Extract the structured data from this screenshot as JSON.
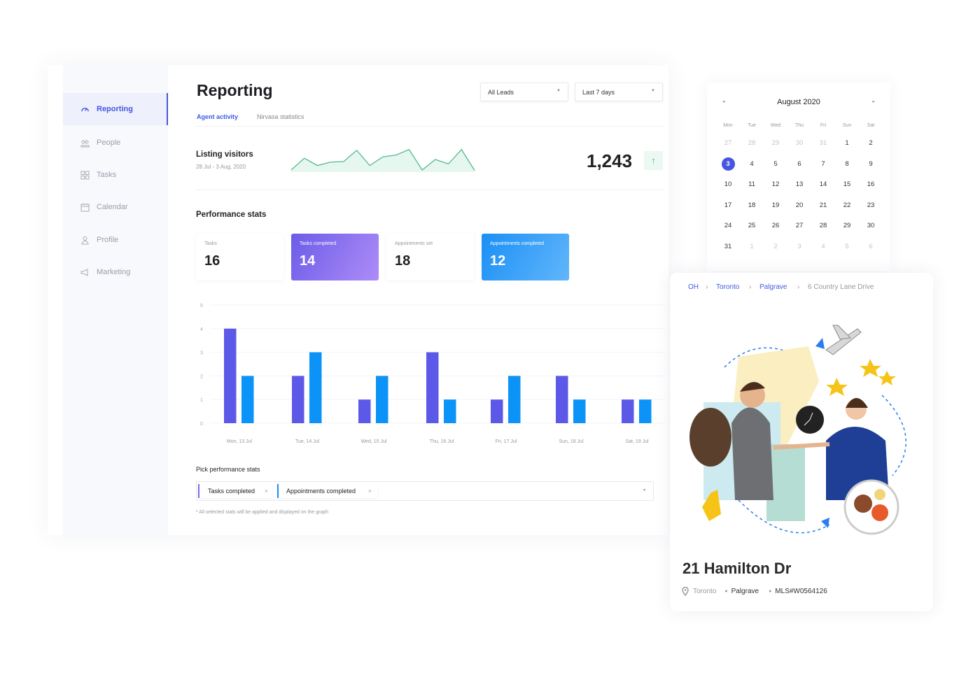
{
  "sidebar": {
    "items": [
      {
        "label": "Reporting",
        "icon": "gauge-icon",
        "active": true
      },
      {
        "label": "People",
        "icon": "people-icon"
      },
      {
        "label": "Tasks",
        "icon": "grid-icon"
      },
      {
        "label": "Calendar",
        "icon": "calendar-icon"
      },
      {
        "label": "Profile",
        "icon": "user-icon"
      },
      {
        "label": "Marketing",
        "icon": "megaphone-icon"
      }
    ]
  },
  "header": {
    "title": "Reporting",
    "leads_filter": "All Leads",
    "range_filter": "Last 7 days"
  },
  "tabs": [
    {
      "label": "Agent activity",
      "active": true
    },
    {
      "label": "Nirvasa statistics"
    }
  ],
  "listing": {
    "title": "Listing visitors",
    "range": "28 Jul - 3 Aug, 2020",
    "total": "1,243",
    "trend_icon": "arrow-up-icon",
    "sparkline": [
      0,
      45,
      17,
      30,
      32,
      75,
      17,
      50,
      57,
      78,
      0,
      40,
      23,
      78,
      -2
    ]
  },
  "performance": {
    "title": "Performance stats",
    "cards": [
      {
        "label": "Tasks",
        "value": "16"
      },
      {
        "label": "Tasks completed",
        "value": "14"
      },
      {
        "label": "Appointments set",
        "value": "18"
      },
      {
        "label": "Appointments completed",
        "value": "12"
      }
    ]
  },
  "chart_data": {
    "type": "bar",
    "categories": [
      "Mon, 13 Jul",
      "Tue, 14 Jul",
      "Wed, 15 Jul",
      "Thu, 16 Jul",
      "Fri, 17 Jul",
      "Sun, 18 Jul",
      "Sat, 19 Jul"
    ],
    "series": [
      {
        "values": [
          4,
          2,
          1,
          3,
          1,
          2,
          1
        ],
        "color": "#5c59e8"
      },
      {
        "values": [
          2,
          3,
          2,
          1,
          2,
          1,
          1
        ],
        "color": "#0c93f7"
      }
    ],
    "yticks": [
      "0",
      "1",
      "2",
      "3",
      "4",
      "5"
    ],
    "ylim": [
      0,
      5
    ],
    "grid": true
  },
  "picker": {
    "title": "Pick performance stats",
    "chips": [
      "Tasks completed",
      "Appointments completed"
    ],
    "note": "* All selected stats will be applied and displayed on the graph"
  },
  "calendar": {
    "month": "August 2020",
    "weekdays": [
      "Mon",
      "Tue",
      "Wed",
      "Thu",
      "Fri",
      "Sun",
      "Sat"
    ],
    "weeks": [
      [
        "27",
        "28",
        "29",
        "30",
        "31",
        "1",
        "2"
      ],
      [
        "3",
        "4",
        "5",
        "6",
        "7",
        "8",
        "9"
      ],
      [
        "10",
        "11",
        "12",
        "13",
        "14",
        "15",
        "16"
      ],
      [
        "17",
        "18",
        "19",
        "20",
        "21",
        "22",
        "23"
      ],
      [
        "24",
        "25",
        "26",
        "27",
        "28",
        "29",
        "30"
      ],
      [
        "31",
        "1",
        "2",
        "3",
        "4",
        "5",
        "6"
      ]
    ],
    "selected": "3"
  },
  "property": {
    "breadcrumb": [
      "OH",
      "Toronto",
      "Palgrave",
      "6 Country Lane Drive"
    ],
    "name": "21 Hamilton Dr",
    "city": "Toronto",
    "area": "Palgrave",
    "mls": "MLS#W0564126"
  }
}
